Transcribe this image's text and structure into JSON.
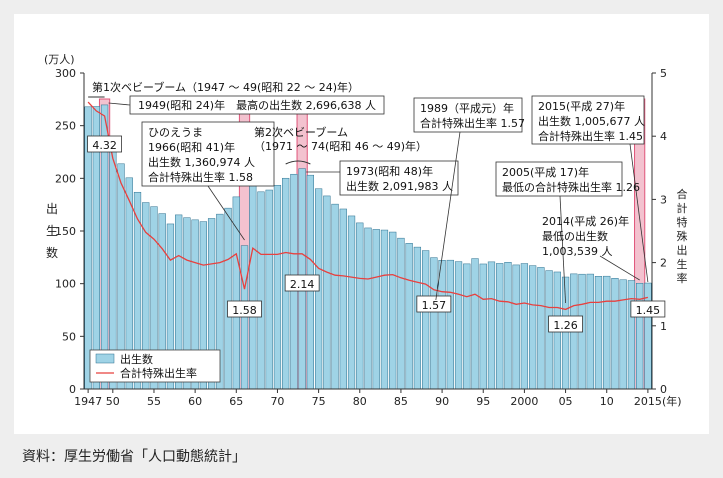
{
  "source_note": "資料：厚生労働省「人口動態統計」",
  "colors": {
    "bar_fill": "#9fd3e6",
    "bar_stroke": "#2b6f8e",
    "highlight_fill": "#f3c2cf",
    "highlight_stroke": "#e0557a",
    "line": "#e8403e",
    "panel_bg": "#ffffff",
    "page_bg": "#eeeeee"
  },
  "chart_data": {
    "type": "bar",
    "xlabel": "(年)",
    "ylabel_left": "出生数",
    "ylabel_left_unit": "(万人)",
    "ylabel_right": "合計特殊出生率",
    "ylim_left": [
      0,
      300
    ],
    "ylim_right": [
      0,
      5
    ],
    "yticks_left": [
      0,
      50,
      100,
      150,
      200,
      250,
      300
    ],
    "yticks_right": [
      0,
      1,
      2,
      3,
      4,
      5
    ],
    "grid": false,
    "legend_position": "bottom-left",
    "years": [
      1947,
      1948,
      1949,
      1950,
      1951,
      1952,
      1953,
      1954,
      1955,
      1956,
      1957,
      1958,
      1959,
      1960,
      1961,
      1962,
      1963,
      1964,
      1965,
      1966,
      1967,
      1968,
      1969,
      1970,
      1971,
      1972,
      1973,
      1974,
      1975,
      1976,
      1977,
      1978,
      1979,
      1980,
      1981,
      1982,
      1983,
      1984,
      1985,
      1986,
      1987,
      1988,
      1989,
      1990,
      1991,
      1992,
      1993,
      1994,
      1995,
      1996,
      1997,
      1998,
      1999,
      2000,
      2001,
      2002,
      2003,
      2004,
      2005,
      2006,
      2007,
      2008,
      2009,
      2010,
      2011,
      2012,
      2013,
      2014,
      2015
    ],
    "xtick_labels": [
      {
        "year": 1947,
        "label": "1947"
      },
      {
        "year": 1950,
        "label": "50"
      },
      {
        "year": 1955,
        "label": "55"
      },
      {
        "year": 1960,
        "label": "60"
      },
      {
        "year": 1965,
        "label": "65"
      },
      {
        "year": 1970,
        "label": "70"
      },
      {
        "year": 1975,
        "label": "75"
      },
      {
        "year": 1980,
        "label": "80"
      },
      {
        "year": 1985,
        "label": "85"
      },
      {
        "year": 1990,
        "label": "90"
      },
      {
        "year": 1995,
        "label": "95"
      },
      {
        "year": 2000,
        "label": "2000"
      },
      {
        "year": 2005,
        "label": "05"
      },
      {
        "year": 2010,
        "label": "10"
      },
      {
        "year": 2015,
        "label": "2015"
      }
    ],
    "highlight_years": [
      1949,
      1966,
      1973,
      2014
    ],
    "series": [
      {
        "name": "出生数",
        "axis": "left",
        "type": "bar",
        "values": [
          267.9,
          268.2,
          269.7,
          233.8,
          213.8,
          200.5,
          186.8,
          177.0,
          173.1,
          166.5,
          156.7,
          165.3,
          162.6,
          160.6,
          158.9,
          161.9,
          166.0,
          171.7,
          182.4,
          136.1,
          193.6,
          187.2,
          188.9,
          193.4,
          200.1,
          203.9,
          209.2,
          203.0,
          190.1,
          183.3,
          175.5,
          170.9,
          164.3,
          157.7,
          152.9,
          151.5,
          150.9,
          149.0,
          143.2,
          138.3,
          134.7,
          131.4,
          124.7,
          122.2,
          122.3,
          120.9,
          118.8,
          123.8,
          118.7,
          120.7,
          119.2,
          120.3,
          117.8,
          119.1,
          117.1,
          115.4,
          112.4,
          111.1,
          106.3,
          109.3,
          109.0,
          109.1,
          107.0,
          107.1,
          105.1,
          103.7,
          103.0,
          100.4,
          100.6
        ]
      },
      {
        "name": "合計特殊出生率",
        "axis": "right",
        "type": "line",
        "values": [
          4.54,
          4.4,
          4.32,
          3.65,
          3.26,
          2.98,
          2.69,
          2.48,
          2.37,
          2.22,
          2.04,
          2.11,
          2.04,
          2.0,
          1.96,
          1.98,
          2.0,
          2.05,
          2.14,
          1.58,
          2.23,
          2.13,
          2.13,
          2.13,
          2.16,
          2.14,
          2.14,
          2.05,
          1.91,
          1.85,
          1.8,
          1.79,
          1.77,
          1.75,
          1.74,
          1.77,
          1.8,
          1.81,
          1.76,
          1.72,
          1.69,
          1.66,
          1.57,
          1.54,
          1.53,
          1.5,
          1.46,
          1.5,
          1.42,
          1.43,
          1.39,
          1.38,
          1.34,
          1.36,
          1.33,
          1.32,
          1.29,
          1.29,
          1.26,
          1.32,
          1.34,
          1.37,
          1.37,
          1.39,
          1.39,
          1.41,
          1.43,
          1.42,
          1.45
        ]
      }
    ],
    "rate_labels": [
      {
        "year": 1949,
        "text": "4.32"
      },
      {
        "year": 1966,
        "text": "1.58"
      },
      {
        "year": 1973,
        "text": "2.14"
      },
      {
        "year": 1989,
        "text": "1.57"
      },
      {
        "year": 2005,
        "text": "1.26"
      },
      {
        "year": 2015,
        "text": "1.45"
      }
    ],
    "annotations": [
      {
        "id": "boom1",
        "lines": [
          "第1次ベビーブーム（1947 ～ 49(昭和 22 ～ 24)年）"
        ]
      },
      {
        "id": "y1949",
        "lines": [
          "1949(昭和 24)年　最高の出生数 2,696,638 人"
        ]
      },
      {
        "id": "hinoeuma",
        "lines": [
          "ひのえうま",
          "1966(昭和 41)年",
          "出生数 1,360,974 人",
          "合計特殊出生率 1.58"
        ]
      },
      {
        "id": "boom2",
        "lines": [
          "第2次ベビーブーム",
          "（1971 ～ 74(昭和 46 ～ 49)年）"
        ]
      },
      {
        "id": "y1973",
        "lines": [
          "1973(昭和 48)年",
          "出生数 2,091,983 人"
        ]
      },
      {
        "id": "y1989",
        "lines": [
          "1989（平成元）年",
          "合計特殊出生率 1.57"
        ]
      },
      {
        "id": "y2005",
        "lines": [
          "2005(平成 17)年",
          "最低の合計特殊出生率 1.26"
        ]
      },
      {
        "id": "y2014",
        "lines": [
          "2014(平成 26)年",
          "最低の出生数",
          "1,003,539 人"
        ]
      },
      {
        "id": "y2015",
        "lines": [
          "2015(平成 27)年",
          "出生数 1,005,677 人",
          "合計特殊出生率 1.45"
        ]
      }
    ]
  }
}
